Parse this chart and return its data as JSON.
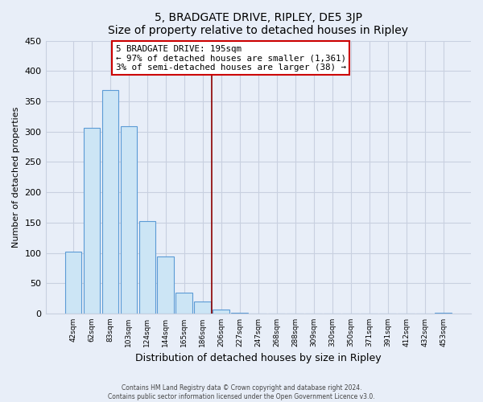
{
  "title": "5, BRADGATE DRIVE, RIPLEY, DE5 3JP",
  "subtitle": "Size of property relative to detached houses in Ripley",
  "xlabel": "Distribution of detached houses by size in Ripley",
  "ylabel": "Number of detached properties",
  "bar_labels": [
    "42sqm",
    "62sqm",
    "83sqm",
    "103sqm",
    "124sqm",
    "144sqm",
    "165sqm",
    "186sqm",
    "206sqm",
    "227sqm",
    "247sqm",
    "268sqm",
    "288sqm",
    "309sqm",
    "330sqm",
    "350sqm",
    "371sqm",
    "391sqm",
    "412sqm",
    "432sqm",
    "453sqm"
  ],
  "bar_values": [
    102,
    306,
    369,
    309,
    153,
    94,
    35,
    20,
    7,
    1,
    0,
    0,
    0,
    0,
    0,
    0,
    0,
    0,
    0,
    0,
    1
  ],
  "bar_color": "#cce5f5",
  "bar_edge_color": "#5b9bd5",
  "vline_x": 8.0,
  "vline_color": "#8b0000",
  "annotation_title": "5 BRADGATE DRIVE: 195sqm",
  "annotation_line1": "← 97% of detached houses are smaller (1,361)",
  "annotation_line2": "3% of semi-detached houses are larger (38) →",
  "annotation_box_color": "white",
  "annotation_box_edge": "#cc0000",
  "ylim": [
    0,
    450
  ],
  "yticks": [
    0,
    50,
    100,
    150,
    200,
    250,
    300,
    350,
    400,
    450
  ],
  "footer_line1": "Contains HM Land Registry data © Crown copyright and database right 2024.",
  "footer_line2": "Contains public sector information licensed under the Open Government Licence v3.0.",
  "bg_color": "#e8eef8",
  "grid_color": "#c8d0e0"
}
